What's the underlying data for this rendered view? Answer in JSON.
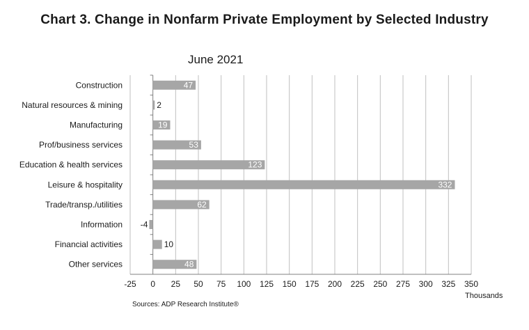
{
  "chart_data": {
    "type": "bar",
    "orientation": "horizontal",
    "title": "Chart 3. Change in Nonfarm Private Employment by Selected Industry",
    "subtitle": "June 2021",
    "categories": [
      "Construction",
      "Natural resources & mining",
      "Manufacturing",
      "Prof/business services",
      "Education & health services",
      "Leisure & hospitality",
      "Trade/transp./utilities",
      "Information",
      "Financial activities",
      "Other services"
    ],
    "values": [
      47,
      2,
      19,
      53,
      123,
      332,
      62,
      -4,
      10,
      48
    ],
    "data_labels": [
      "47",
      "2",
      "19",
      "53",
      "123",
      "332",
      "62",
      "-4",
      "10",
      "48"
    ],
    "x_ticks": [
      "-25",
      "0",
      "25",
      "50",
      "75",
      "100",
      "125",
      "150",
      "175",
      "200",
      "225",
      "250",
      "275",
      "300",
      "325",
      "350"
    ],
    "xlim": [
      -25,
      350
    ],
    "x_unit": "Thousands",
    "grid": "vertical",
    "bar_color": "#a6a6a6",
    "grid_color": "#bfbfbf"
  },
  "source": "Sources: ADP Research Institute®"
}
